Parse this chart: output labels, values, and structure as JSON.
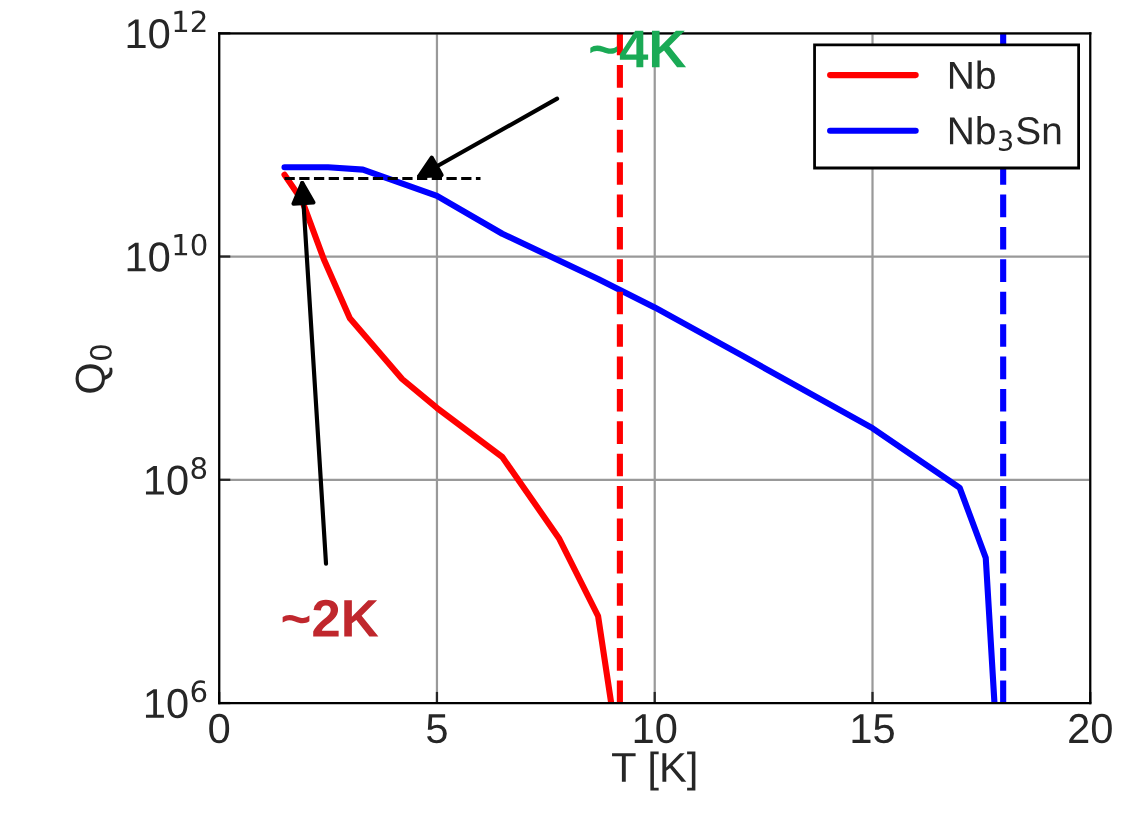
{
  "chart_data": {
    "type": "line",
    "xlabel": "T [K]",
    "ylabel": "Q$_{0}$",
    "x": [
      1.5,
      1.9,
      2.4,
      3.0,
      4.2,
      5.0,
      6.5,
      7.8,
      8.7,
      9.0
    ],
    "series": [
      {
        "name": "Nb",
        "color": "#ff0000",
        "values": [
          54000000000.0,
          32000000000.0,
          9500000000.0,
          2800000000.0,
          800000000.0,
          440000000.0,
          160000000.0,
          30000000.0,
          6000000.0,
          1000000.0
        ]
      },
      {
        "name": "Nb$_{3}$Sn",
        "color": "#0000ff",
        "x": [
          1.5,
          2.5,
          3.3,
          5.0,
          6.5,
          8.7,
          10,
          12,
          15,
          17,
          17.6,
          17.8
        ],
        "values": [
          63000000000.0,
          63000000000.0,
          60000000000.0,
          35000000000.0,
          16000000000.0,
          6300000000.0,
          3500000000.0,
          1300000000.0,
          290000000.0,
          85000000.0,
          20000000.0,
          1000000.0
        ]
      },
      {
        "color": "#000000",
        "line_style": "dashed",
        "x": [
          1.5,
          6.0
        ],
        "values": [
          50000000000.0,
          50000000000.0
        ]
      }
    ],
    "ref_lines": [
      {
        "axis": "x",
        "value": 9.2,
        "color": "#ff0000",
        "line_style": "dashed"
      },
      {
        "axis": "x",
        "value": 18,
        "color": "#0000ff",
        "line_style": "dashed"
      }
    ],
    "annotations": [
      {
        "text": "~2K",
        "x": 1.9,
        "y": 50000000000.0
      },
      {
        "text": "~4K",
        "x": 4.5,
        "y": 50000000000.0
      }
    ],
    "log": "y",
    "xlim": [
      0,
      20
    ],
    "xticks": [
      0,
      5,
      10,
      15,
      20
    ],
    "ylim": [
      1000000.0,
      1000000000000.0
    ],
    "yticks": [
      {
        "value": 1000000.0,
        "label": "10$^{6}$"
      },
      {
        "value": 100000000.0,
        "label": "10$^{8}$"
      },
      {
        "value": 10000000000.0,
        "label": "10$^{10}$"
      },
      {
        "value": 1000000000000.0,
        "label": "10$^{12}$"
      }
    ],
    "grid": true,
    "legend": "top right"
  }
}
